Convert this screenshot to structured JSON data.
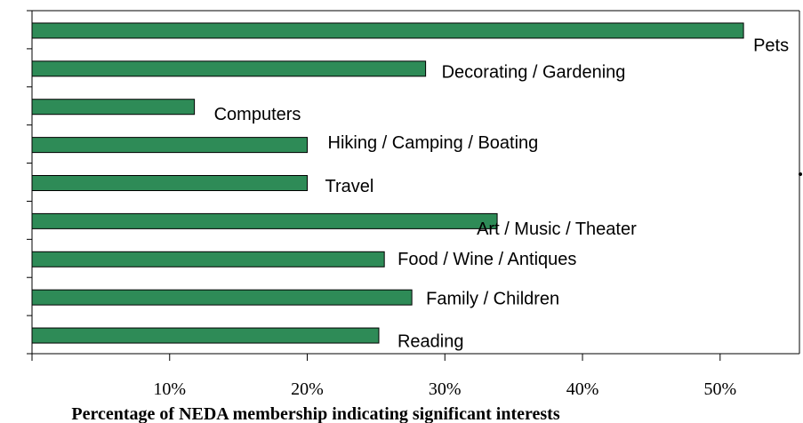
{
  "chart_data": {
    "type": "barh",
    "xlabel": "Percentage of NEDA membership indicating significant interests",
    "categories": [
      "Pets",
      "Decorating / Gardening",
      "Computers",
      "Hiking / Camping / Boating",
      "Travel",
      "Art / Music / Theater",
      "Food / Wine / Antiques",
      "Family / Children",
      "Reading"
    ],
    "values": [
      51.7,
      28.6,
      11.8,
      20.0,
      20.0,
      33.8,
      25.6,
      27.6,
      25.2
    ],
    "color": "#2e8b57",
    "xlim": [
      0,
      55.7
    ],
    "xticks": [
      {
        "value": 10,
        "label": "10%"
      },
      {
        "value": 20,
        "label": "20%"
      },
      {
        "value": 30,
        "label": "30%"
      },
      {
        "value": 40,
        "label": "40%"
      },
      {
        "value": 50,
        "label": "50%"
      }
    ]
  }
}
